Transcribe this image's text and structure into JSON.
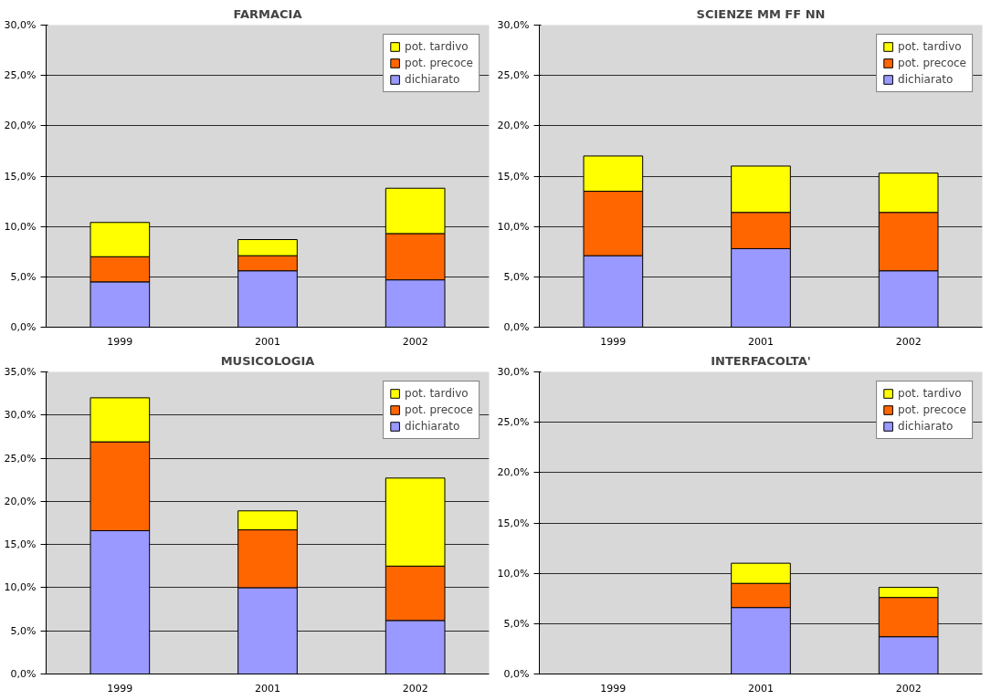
{
  "chart_data": [
    {
      "type": "bar",
      "stacked": true,
      "title": "FARMACIA",
      "categories": [
        "1999",
        "2001",
        "2002"
      ],
      "ylim": [
        0,
        30
      ],
      "yticks": [
        {
          "value": 0,
          "label": "0,0%"
        },
        {
          "value": 5,
          "label": "5,0%"
        },
        {
          "value": 10,
          "label": "10,0%"
        },
        {
          "value": 15,
          "label": "15,0%"
        },
        {
          "value": 20,
          "label": "20,0%"
        },
        {
          "value": 25,
          "label": "25,0%"
        },
        {
          "value": 30,
          "label": "30,0%"
        }
      ],
      "grid": "y",
      "legend": "top right",
      "series": [
        {
          "name": "dichiarato",
          "color": "#9999ff",
          "values": [
            4.5,
            5.6,
            4.7
          ]
        },
        {
          "name": "pot. precoce",
          "color": "#ff6600",
          "values": [
            2.5,
            1.5,
            4.6
          ]
        },
        {
          "name": "pot. tardivo",
          "color": "#ffff00",
          "values": [
            3.4,
            1.6,
            4.5
          ]
        }
      ]
    },
    {
      "type": "bar",
      "stacked": true,
      "title": "SCIENZE MM FF NN",
      "categories": [
        "1999",
        "2001",
        "2002"
      ],
      "ylim": [
        0,
        30
      ],
      "yticks": [
        {
          "value": 0,
          "label": "0,0%"
        },
        {
          "value": 5,
          "label": "5,0%"
        },
        {
          "value": 10,
          "label": "10,0%"
        },
        {
          "value": 15,
          "label": "15,0%"
        },
        {
          "value": 20,
          "label": "20,0%"
        },
        {
          "value": 25,
          "label": "25,0%"
        },
        {
          "value": 30,
          "label": "30,0%"
        }
      ],
      "grid": "y",
      "legend": "top right",
      "series": [
        {
          "name": "dichiarato",
          "color": "#9999ff",
          "values": [
            7.1,
            7.8,
            5.6
          ]
        },
        {
          "name": "pot. precoce",
          "color": "#ff6600",
          "values": [
            6.4,
            3.6,
            5.8
          ]
        },
        {
          "name": "pot. tardivo",
          "color": "#ffff00",
          "values": [
            3.5,
            4.6,
            3.9
          ]
        }
      ]
    },
    {
      "type": "bar",
      "stacked": true,
      "title": "MUSICOLOGIA",
      "categories": [
        "1999",
        "2001",
        "2002"
      ],
      "ylim": [
        0,
        35
      ],
      "yticks": [
        {
          "value": 0,
          "label": "0,0%"
        },
        {
          "value": 5,
          "label": "5,0%"
        },
        {
          "value": 10,
          "label": "10,0%"
        },
        {
          "value": 15,
          "label": "15,0%"
        },
        {
          "value": 20,
          "label": "20,0%"
        },
        {
          "value": 25,
          "label": "25,0%"
        },
        {
          "value": 30,
          "label": "30,0%"
        },
        {
          "value": 35,
          "label": "35,0%"
        }
      ],
      "grid": "y",
      "legend": "top right",
      "series": [
        {
          "name": "dichiarato",
          "color": "#9999ff",
          "values": [
            16.6,
            10.0,
            6.2
          ]
        },
        {
          "name": "pot. precoce",
          "color": "#ff6600",
          "values": [
            10.3,
            6.7,
            6.3
          ]
        },
        {
          "name": "pot. tardivo",
          "color": "#ffff00",
          "values": [
            5.1,
            2.2,
            10.2
          ]
        }
      ]
    },
    {
      "type": "bar",
      "stacked": true,
      "title": "INTERFACOLTA'",
      "categories": [
        "1999",
        "2001",
        "2002"
      ],
      "ylim": [
        0,
        30
      ],
      "yticks": [
        {
          "value": 0,
          "label": "0,0%"
        },
        {
          "value": 5,
          "label": "5,0%"
        },
        {
          "value": 10,
          "label": "10,0%"
        },
        {
          "value": 15,
          "label": "15,0%"
        },
        {
          "value": 20,
          "label": "20,0%"
        },
        {
          "value": 25,
          "label": "25,0%"
        },
        {
          "value": 30,
          "label": "30,0%"
        }
      ],
      "grid": "y",
      "legend": "top right",
      "series": [
        {
          "name": "dichiarato",
          "color": "#9999ff",
          "values": [
            null,
            6.6,
            3.7
          ]
        },
        {
          "name": "pot. precoce",
          "color": "#ff6600",
          "values": [
            null,
            2.4,
            3.9
          ]
        },
        {
          "name": "pot. tardivo",
          "color": "#ffff00",
          "values": [
            null,
            2.0,
            1.0
          ]
        }
      ]
    }
  ]
}
